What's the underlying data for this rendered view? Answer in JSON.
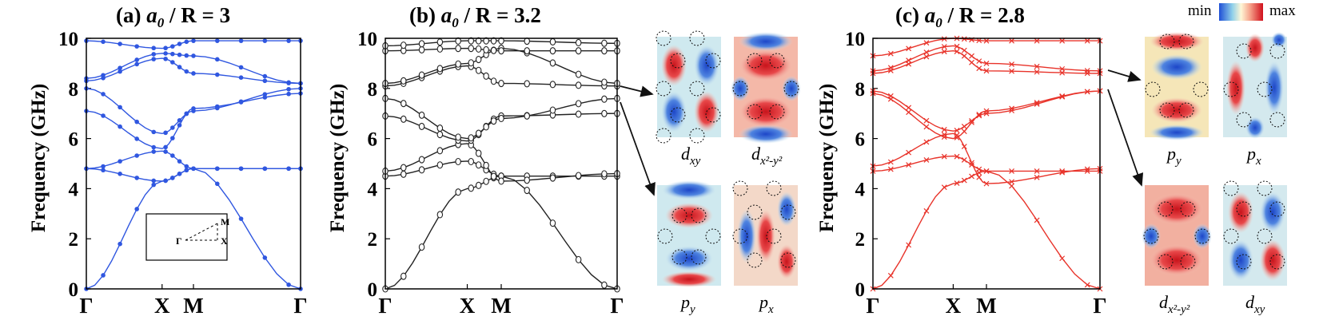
{
  "colorbar": {
    "min_label": "min",
    "max_label": "max"
  },
  "colors": {
    "panel_a": "#3057e0",
    "panel_b": "#222222",
    "panel_c": "#e8332a"
  },
  "chart_data": [
    {
      "type": "line",
      "panel": "a",
      "title": {
        "prefix": "(a) ",
        "var": "a",
        "sub": "0",
        "rest": " / R = 3"
      },
      "ylabel": "Frequency (GHz)",
      "ylim": [
        0,
        10
      ],
      "yticks": [
        "0",
        "2",
        "4",
        "6",
        "8",
        "10"
      ],
      "x_points": [
        0,
        1,
        1.4142,
        2.8284
      ],
      "x_tick_labels": [
        "Γ",
        "X",
        "M",
        "Γ"
      ],
      "marker": "dot",
      "inset": {
        "labels": [
          "Γ",
          "X",
          "M"
        ]
      },
      "series": [
        {
          "name": "band 1",
          "values": [
            0.0,
            4.3,
            4.8,
            0.0
          ]
        },
        {
          "name": "band 2",
          "values": [
            4.8,
            5.5,
            4.8,
            4.8
          ]
        },
        {
          "name": "band 3",
          "values": [
            4.8,
            4.3,
            4.8,
            4.8
          ]
        },
        {
          "name": "band 4",
          "values": [
            7.1,
            5.6,
            7.2,
            7.8
          ]
        },
        {
          "name": "band 5",
          "values": [
            8.0,
            6.2,
            7.1,
            8.0
          ]
        },
        {
          "name": "band 6",
          "values": [
            8.3,
            9.2,
            8.6,
            8.2
          ]
        },
        {
          "name": "band 7",
          "values": [
            8.4,
            9.4,
            9.3,
            8.2
          ]
        },
        {
          "name": "band 8",
          "values": [
            9.9,
            9.6,
            9.9,
            9.9
          ]
        }
      ]
    },
    {
      "type": "line",
      "panel": "b",
      "title": {
        "prefix": "(b) ",
        "var": "a",
        "sub": "0",
        "rest": " / R = 3.2"
      },
      "ylabel": "Frequency (GHz)",
      "ylim": [
        0,
        10
      ],
      "yticks": [
        "0",
        "2",
        "4",
        "6",
        "8",
        "10"
      ],
      "x_points": [
        0,
        1,
        1.4142,
        2.8284
      ],
      "x_tick_labels": [
        "Γ",
        "X",
        "M",
        "Γ"
      ],
      "marker": "circle",
      "series": [
        {
          "name": "band 1",
          "values": [
            0.0,
            4.0,
            4.5,
            0.0
          ]
        },
        {
          "name": "band 2",
          "values": [
            4.5,
            5.1,
            4.5,
            4.5
          ]
        },
        {
          "name": "band 3",
          "values": [
            4.7,
            5.8,
            4.3,
            4.6
          ]
        },
        {
          "name": "band 4",
          "values": [
            6.9,
            5.9,
            6.9,
            7.0
          ]
        },
        {
          "name": "band 5",
          "values": [
            7.6,
            6.0,
            6.8,
            7.6
          ]
        },
        {
          "name": "band 6",
          "values": [
            8.1,
            8.9,
            8.2,
            8.1
          ]
        },
        {
          "name": "band 7",
          "values": [
            8.2,
            9.0,
            9.6,
            8.2
          ]
        },
        {
          "name": "band 8",
          "values": [
            9.5,
            9.6,
            9.5,
            9.5
          ]
        },
        {
          "name": "band 9",
          "values": [
            9.7,
            9.9,
            9.9,
            9.8
          ]
        }
      ],
      "mode_images": [
        {
          "label": "d",
          "sub": "xy",
          "sup": ""
        },
        {
          "label": "d",
          "sub": "x²-y²",
          "sup": ""
        },
        {
          "label": "p",
          "sub": "y",
          "sup": ""
        },
        {
          "label": "p",
          "sub": "x",
          "sup": ""
        }
      ]
    },
    {
      "type": "line",
      "panel": "c",
      "title": {
        "prefix": "(c) ",
        "var": "a",
        "sub": "0",
        "rest": " / R = 2.8"
      },
      "ylabel": "Frequency (GHz)",
      "ylim": [
        0,
        10
      ],
      "yticks": [
        "0",
        "2",
        "4",
        "6",
        "8",
        "10"
      ],
      "x_points": [
        0,
        1,
        1.4142,
        2.8284
      ],
      "x_tick_labels": [
        "Γ",
        "X",
        "M",
        "Γ"
      ],
      "marker": "x",
      "series": [
        {
          "name": "band 1",
          "values": [
            0.0,
            4.2,
            4.7,
            0.0
          ]
        },
        {
          "name": "band 2",
          "values": [
            4.7,
            5.3,
            4.7,
            4.7
          ]
        },
        {
          "name": "band 3",
          "values": [
            4.9,
            6.2,
            4.2,
            4.8
          ]
        },
        {
          "name": "band 4",
          "values": [
            7.8,
            6.0,
            7.1,
            7.9
          ]
        },
        {
          "name": "band 5",
          "values": [
            7.9,
            6.3,
            7.0,
            7.9
          ]
        },
        {
          "name": "band 6",
          "values": [
            8.6,
            9.5,
            8.7,
            8.6
          ]
        },
        {
          "name": "band 7",
          "values": [
            8.7,
            9.7,
            9.0,
            8.7
          ]
        },
        {
          "name": "band 8",
          "values": [
            9.3,
            10.0,
            9.9,
            9.9
          ]
        }
      ],
      "mode_images": [
        {
          "label": "p",
          "sub": "y",
          "sup": ""
        },
        {
          "label": "p",
          "sub": "x",
          "sup": ""
        },
        {
          "label": "d",
          "sub": "x²-y²",
          "sup": ""
        },
        {
          "label": "d",
          "sub": "xy",
          "sup": ""
        }
      ]
    }
  ]
}
